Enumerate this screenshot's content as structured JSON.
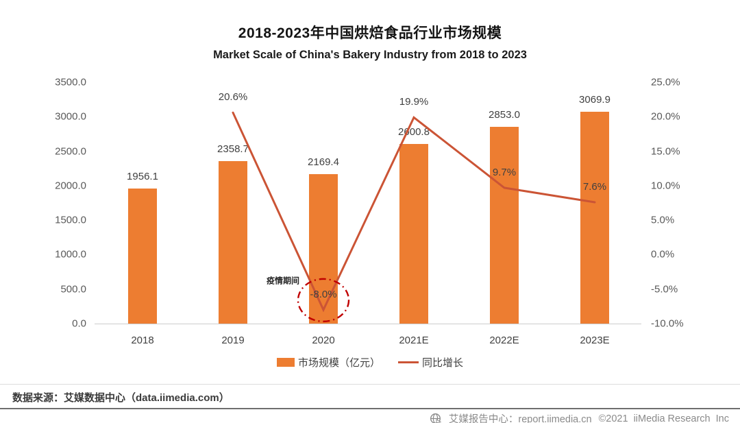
{
  "title": "2018-2023年中国烘焙食品行业市场规模",
  "subtitle": "Market Scale of China's Bakery Industry from 2018 to 2023",
  "chart_data": {
    "type": "bar",
    "categories": [
      "2018",
      "2019",
      "2020",
      "2021E",
      "2022E",
      "2023E"
    ],
    "series": [
      {
        "name": "市场规模（亿元）",
        "type": "bar",
        "axis": "left",
        "color": "#ED7D31",
        "values": [
          1956.1,
          2358.7,
          2169.4,
          2600.8,
          2853.0,
          3069.9
        ],
        "labels": [
          "1956.1",
          "2358.7",
          "2169.4",
          "2600.8",
          "2853.0",
          "3069.9"
        ]
      },
      {
        "name": "同比增长",
        "type": "line",
        "axis": "right",
        "color": "#CB5435",
        "values": [
          null,
          20.6,
          -8.0,
          19.9,
          9.7,
          7.6
        ],
        "labels": [
          null,
          "20.6%",
          "-8.0%",
          "19.9%",
          "9.7%",
          "7.6%"
        ]
      }
    ],
    "left_axis": {
      "min": 0,
      "max": 3500,
      "step": 500,
      "ticks": [
        "3500.0",
        "3000.0",
        "2500.0",
        "2000.0",
        "1500.0",
        "1000.0",
        "500.0",
        "0.0"
      ]
    },
    "right_axis": {
      "min": -10,
      "max": 25,
      "step": 5,
      "ticks": [
        "25.0%",
        "20.0%",
        "15.0%",
        "10.0%",
        "5.0%",
        "0.0%",
        "-5.0%",
        "-10.0%"
      ]
    },
    "annotation": {
      "text": "疫情期间",
      "index": 2,
      "circle_color": "#C00000"
    },
    "legend": [
      {
        "label": "市场规模（亿元）",
        "swatch": "rect",
        "color": "#ED7D31"
      },
      {
        "label": "同比增长",
        "swatch": "line",
        "color": "#CB5435"
      }
    ],
    "grid": false,
    "legend_position": "bottom"
  },
  "source_note": "数据来源：艾媒数据中心（data.iimedia.com）",
  "footer": {
    "brand": "艾媒报告中心：report.iimedia.cn",
    "copyright": "©2021  iiMedia Research  Inc",
    "icon": "globe-cursor"
  }
}
